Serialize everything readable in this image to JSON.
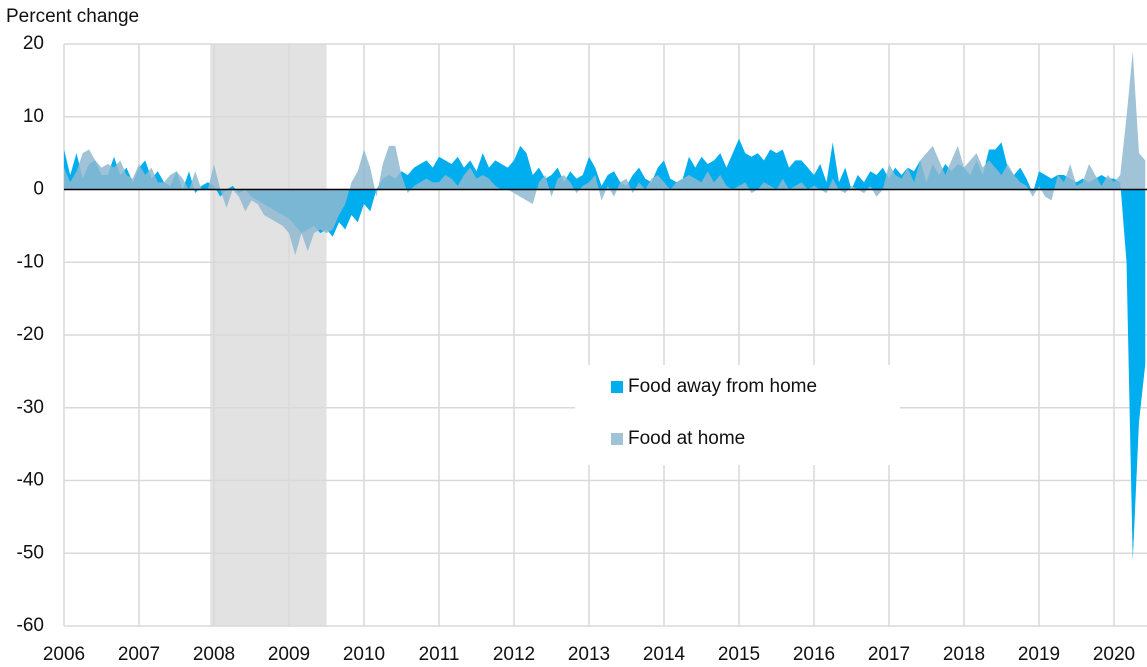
{
  "chart_data": {
    "type": "area",
    "y_label": "Percent change",
    "xlim": [
      2006,
      2020.44
    ],
    "xticks": [
      2006,
      2007,
      2008,
      2009,
      2010,
      2011,
      2012,
      2013,
      2014,
      2015,
      2016,
      2017,
      2018,
      2019,
      2020
    ],
    "ylim": [
      -60,
      20
    ],
    "yticks": [
      -60,
      -50,
      -40,
      -30,
      -20,
      -10,
      0,
      10,
      20
    ],
    "grid": true,
    "legend": "center",
    "recession": [
      2007.95,
      2009.5
    ],
    "x": [
      2006,
      2006.083,
      2006.167,
      2006.25,
      2006.333,
      2006.417,
      2006.5,
      2006.583,
      2006.667,
      2006.75,
      2006.833,
      2006.917,
      2007,
      2007.083,
      2007.167,
      2007.25,
      2007.333,
      2007.417,
      2007.5,
      2007.583,
      2007.667,
      2007.75,
      2007.833,
      2007.917,
      2008,
      2008.083,
      2008.167,
      2008.25,
      2008.333,
      2008.417,
      2008.5,
      2008.583,
      2008.667,
      2008.75,
      2008.833,
      2008.917,
      2009,
      2009.083,
      2009.167,
      2009.25,
      2009.333,
      2009.417,
      2009.5,
      2009.583,
      2009.667,
      2009.75,
      2009.833,
      2009.917,
      2010,
      2010.083,
      2010.167,
      2010.25,
      2010.333,
      2010.417,
      2010.5,
      2010.583,
      2010.667,
      2010.75,
      2010.833,
      2010.917,
      2011,
      2011.083,
      2011.167,
      2011.25,
      2011.333,
      2011.417,
      2011.5,
      2011.583,
      2011.667,
      2011.75,
      2011.833,
      2011.917,
      2012,
      2012.083,
      2012.167,
      2012.25,
      2012.333,
      2012.417,
      2012.5,
      2012.583,
      2012.667,
      2012.75,
      2012.833,
      2012.917,
      2013,
      2013.083,
      2013.167,
      2013.25,
      2013.333,
      2013.417,
      2013.5,
      2013.583,
      2013.667,
      2013.75,
      2013.833,
      2013.917,
      2014,
      2014.083,
      2014.167,
      2014.25,
      2014.333,
      2014.417,
      2014.5,
      2014.583,
      2014.667,
      2014.75,
      2014.833,
      2014.917,
      2015,
      2015.083,
      2015.167,
      2015.25,
      2015.333,
      2015.417,
      2015.5,
      2015.583,
      2015.667,
      2015.75,
      2015.833,
      2015.917,
      2016,
      2016.083,
      2016.167,
      2016.25,
      2016.333,
      2016.417,
      2016.5,
      2016.583,
      2016.667,
      2016.75,
      2016.833,
      2016.917,
      2017,
      2017.083,
      2017.167,
      2017.25,
      2017.333,
      2017.417,
      2017.5,
      2017.583,
      2017.667,
      2017.75,
      2017.833,
      2017.917,
      2018,
      2018.083,
      2018.167,
      2018.25,
      2018.333,
      2018.417,
      2018.5,
      2018.583,
      2018.667,
      2018.75,
      2018.833,
      2018.917,
      2019,
      2019.083,
      2019.167,
      2019.25,
      2019.333,
      2019.417,
      2019.5,
      2019.583,
      2019.667,
      2019.75,
      2019.833,
      2019.917,
      2020,
      2020.083,
      2020.167,
      2020.25,
      2020.333,
      2020.417
    ],
    "series": [
      {
        "name": "Food away from home",
        "color": "#00aeef",
        "opacity": 1,
        "values": [
          5.5,
          2,
          5,
          1.5,
          3.5,
          4,
          2,
          2,
          4.5,
          2,
          3,
          1,
          3,
          4,
          1.5,
          2.5,
          1,
          0.5,
          2.5,
          0,
          2.5,
          -0.5,
          0.5,
          1,
          0.5,
          -1,
          0,
          0.5,
          -0.5,
          0,
          -1,
          -1.5,
          -2,
          -2.5,
          -3,
          -3.5,
          -4,
          -5,
          -6,
          -5.5,
          -5,
          -6,
          -5.5,
          -6.5,
          -4.5,
          -5.5,
          -3.5,
          -4.5,
          -2,
          -3,
          0,
          1.5,
          2,
          1.5,
          2.5,
          2,
          3,
          3.5,
          4,
          3,
          4.5,
          4,
          3.5,
          4.5,
          3,
          4,
          2.5,
          5,
          3,
          4,
          3.5,
          3,
          4,
          6,
          5,
          2,
          3,
          1.5,
          2,
          3,
          1,
          2.5,
          1.5,
          2,
          4.5,
          3,
          0.5,
          2,
          2.5,
          1,
          0.5,
          2,
          3,
          1.5,
          1,
          3,
          4,
          1.5,
          1,
          1.5,
          4.5,
          3,
          4.5,
          3.5,
          4,
          5,
          3,
          5,
          7,
          5,
          4.5,
          5,
          4,
          5.5,
          5,
          5.5,
          3,
          4,
          4,
          3,
          2,
          3.5,
          1,
          6.5,
          1,
          3,
          0,
          2,
          1,
          2.5,
          2,
          3,
          1.5,
          3,
          2,
          3,
          2.5,
          4,
          1,
          3.5,
          2,
          3.5,
          2.5,
          3.5,
          3,
          2,
          4,
          2,
          5.5,
          5.5,
          6.5,
          3,
          2,
          3,
          1.5,
          -0.5,
          2.5,
          2,
          1.5,
          2,
          2,
          1.5,
          1,
          1.5,
          1,
          1.5,
          2,
          1.5,
          1.5,
          1,
          -10,
          -51,
          -32,
          -24
        ]
      },
      {
        "name": "Food at home",
        "color": "#8fb8d0",
        "opacity": 0.85,
        "values": [
          3,
          1,
          2.5,
          5,
          5.5,
          4,
          3,
          3.5,
          3,
          4,
          2,
          1.5,
          3.5,
          2,
          3,
          1,
          1,
          2,
          2.5,
          1.5,
          0,
          2.5,
          0,
          0,
          3.5,
          0,
          -2.5,
          0,
          -1,
          -3,
          -1.5,
          -2,
          -3.5,
          -4,
          -4.5,
          -5,
          -6,
          -9,
          -6,
          -8.5,
          -6,
          -5.5,
          -6,
          -5.5,
          -3.5,
          -2,
          1,
          2.5,
          5.5,
          3,
          -1,
          3.5,
          6,
          6,
          2,
          -0.5,
          0.5,
          1,
          1.5,
          1,
          1,
          2,
          1.5,
          0.5,
          2,
          3,
          1.5,
          2,
          1.5,
          0.5,
          0,
          0,
          -0.5,
          -1,
          -1.5,
          -2,
          1,
          2,
          -1,
          1.5,
          2,
          1,
          -0.5,
          0.5,
          1,
          2,
          -1.5,
          0.5,
          -1,
          1,
          1.5,
          -0.5,
          1,
          0,
          1.5,
          2,
          1,
          0,
          1,
          1.5,
          2,
          1.5,
          1,
          2.5,
          1,
          2,
          0.5,
          0,
          0.5,
          1,
          -0.5,
          0,
          1,
          0.5,
          0,
          1.5,
          0,
          0.5,
          1,
          0,
          0.5,
          0,
          -0.5,
          1.5,
          0,
          -0.5,
          0.5,
          0,
          -0.5,
          0.5,
          -1,
          0,
          3.5,
          2,
          1.5,
          3,
          1,
          4,
          5,
          6,
          4,
          2,
          4,
          6,
          3,
          4,
          5,
          3,
          4,
          3,
          2,
          3.5,
          2,
          1,
          0.5,
          -1,
          0.5,
          -1,
          -1.5,
          2,
          1,
          3.5,
          0.5,
          1,
          3.5,
          2,
          0.5,
          2,
          1,
          2,
          10,
          19,
          5,
          4
        ]
      }
    ]
  }
}
